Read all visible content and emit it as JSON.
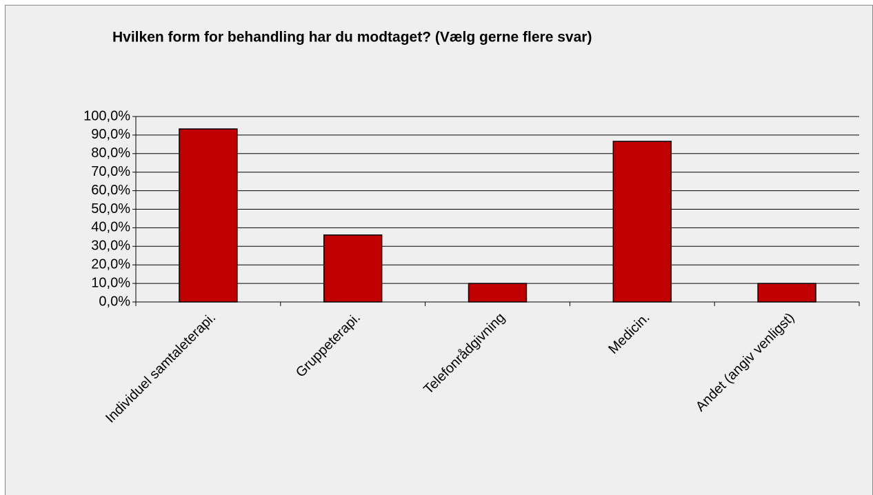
{
  "chart_data": {
    "type": "bar",
    "title": "Hvilken form for behandling har du modtaget? (Vælg gerne flere svar)",
    "categories": [
      "Individuel samtaleterapi.",
      "Gruppeterapi.",
      "Telefonrådgivning",
      "Medicin.",
      "Andet (angiv venligst)"
    ],
    "values": [
      93.3,
      36.1,
      10.0,
      86.6,
      10.0
    ],
    "color": "#c00000",
    "ylim": [
      0,
      100
    ],
    "yticks": [
      {
        "value": 0,
        "label": "0,0%"
      },
      {
        "value": 10,
        "label": "10,0%"
      },
      {
        "value": 20,
        "label": "20,0%"
      },
      {
        "value": 30,
        "label": "30,0%"
      },
      {
        "value": 40,
        "label": "40,0%"
      },
      {
        "value": 50,
        "label": "50,0%"
      },
      {
        "value": 60,
        "label": "60,0%"
      },
      {
        "value": 70,
        "label": "70,0%"
      },
      {
        "value": 80,
        "label": "80,0%"
      },
      {
        "value": 90,
        "label": "90,0%"
      },
      {
        "value": 100,
        "label": "100,0%"
      }
    ],
    "grid": true
  }
}
